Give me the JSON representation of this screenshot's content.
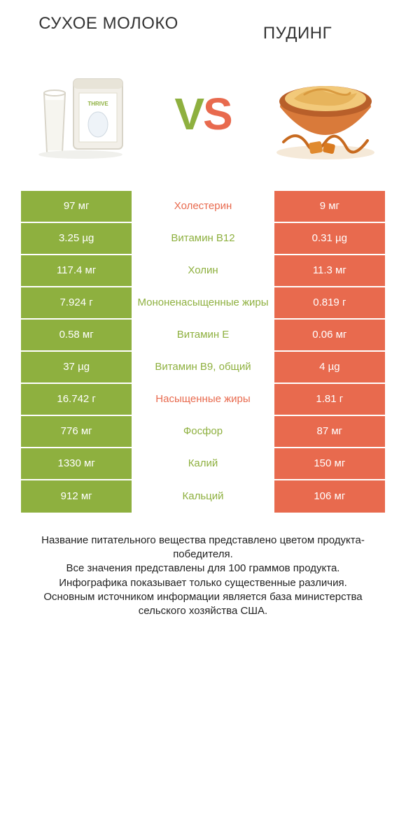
{
  "colors": {
    "green": "#8eb03f",
    "orange": "#e86a4e",
    "white": "#ffffff",
    "text": "#333333"
  },
  "header": {
    "left_title": "СУХОЕ МОЛОКО",
    "right_title": "ПУДИНГ"
  },
  "vs": {
    "v": "V",
    "s": "S"
  },
  "table": {
    "rows": [
      {
        "left": "97 мг",
        "mid": "Холестерин",
        "right": "9 мг",
        "winner": "left"
      },
      {
        "left": "3.25 µg",
        "mid": "Витамин B12",
        "right": "0.31 µg",
        "winner": "left"
      },
      {
        "left": "117.4 мг",
        "mid": "Холин",
        "right": "11.3 мг",
        "winner": "left"
      },
      {
        "left": "7.924 г",
        "mid": "Мононенасыщенные жиры",
        "right": "0.819 г",
        "winner": "left"
      },
      {
        "left": "0.58 мг",
        "mid": "Витамин E",
        "right": "0.06 мг",
        "winner": "left"
      },
      {
        "left": "37 µg",
        "mid": "Витамин B9, общий",
        "right": "4 µg",
        "winner": "left"
      },
      {
        "left": "16.742 г",
        "mid": "Насыщенные жиры",
        "right": "1.81 г",
        "winner": "left"
      },
      {
        "left": "776 мг",
        "mid": "Фосфор",
        "right": "87 мг",
        "winner": "left"
      },
      {
        "left": "1330 мг",
        "mid": "Калий",
        "right": "150 мг",
        "winner": "left"
      },
      {
        "left": "912 мг",
        "mid": "Кальций",
        "right": "106 мг",
        "winner": "left"
      }
    ],
    "mid_color_map": {
      "Холестерин": "orange",
      "Витамин B12": "green",
      "Холин": "green",
      "Мононенасыщенные жиры": "green",
      "Витамин E": "green",
      "Витамин B9, общий": "green",
      "Насыщенные жиры": "orange",
      "Фосфор": "green",
      "Калий": "green",
      "Кальций": "green"
    }
  },
  "footer_lines": [
    "Название питательного вещества представлено цветом продукта-победителя.",
    "Все значения представлены для 100 граммов продукта.",
    "Инфографика показывает только существенные различия.",
    "Основным источником информации является база министерства сельского хозяйства США."
  ]
}
